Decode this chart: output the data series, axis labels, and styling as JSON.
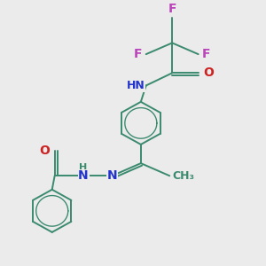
{
  "background_color": "#ebebeb",
  "bond_color": "#3a8a6e",
  "bond_width": 1.4,
  "atom_colors": {
    "C": "#3a8a6e",
    "N": "#2233cc",
    "O": "#cc2222",
    "F": "#bb44bb",
    "H": "#3a8a6e"
  },
  "figsize": [
    3.0,
    3.0
  ],
  "dpi": 100
}
